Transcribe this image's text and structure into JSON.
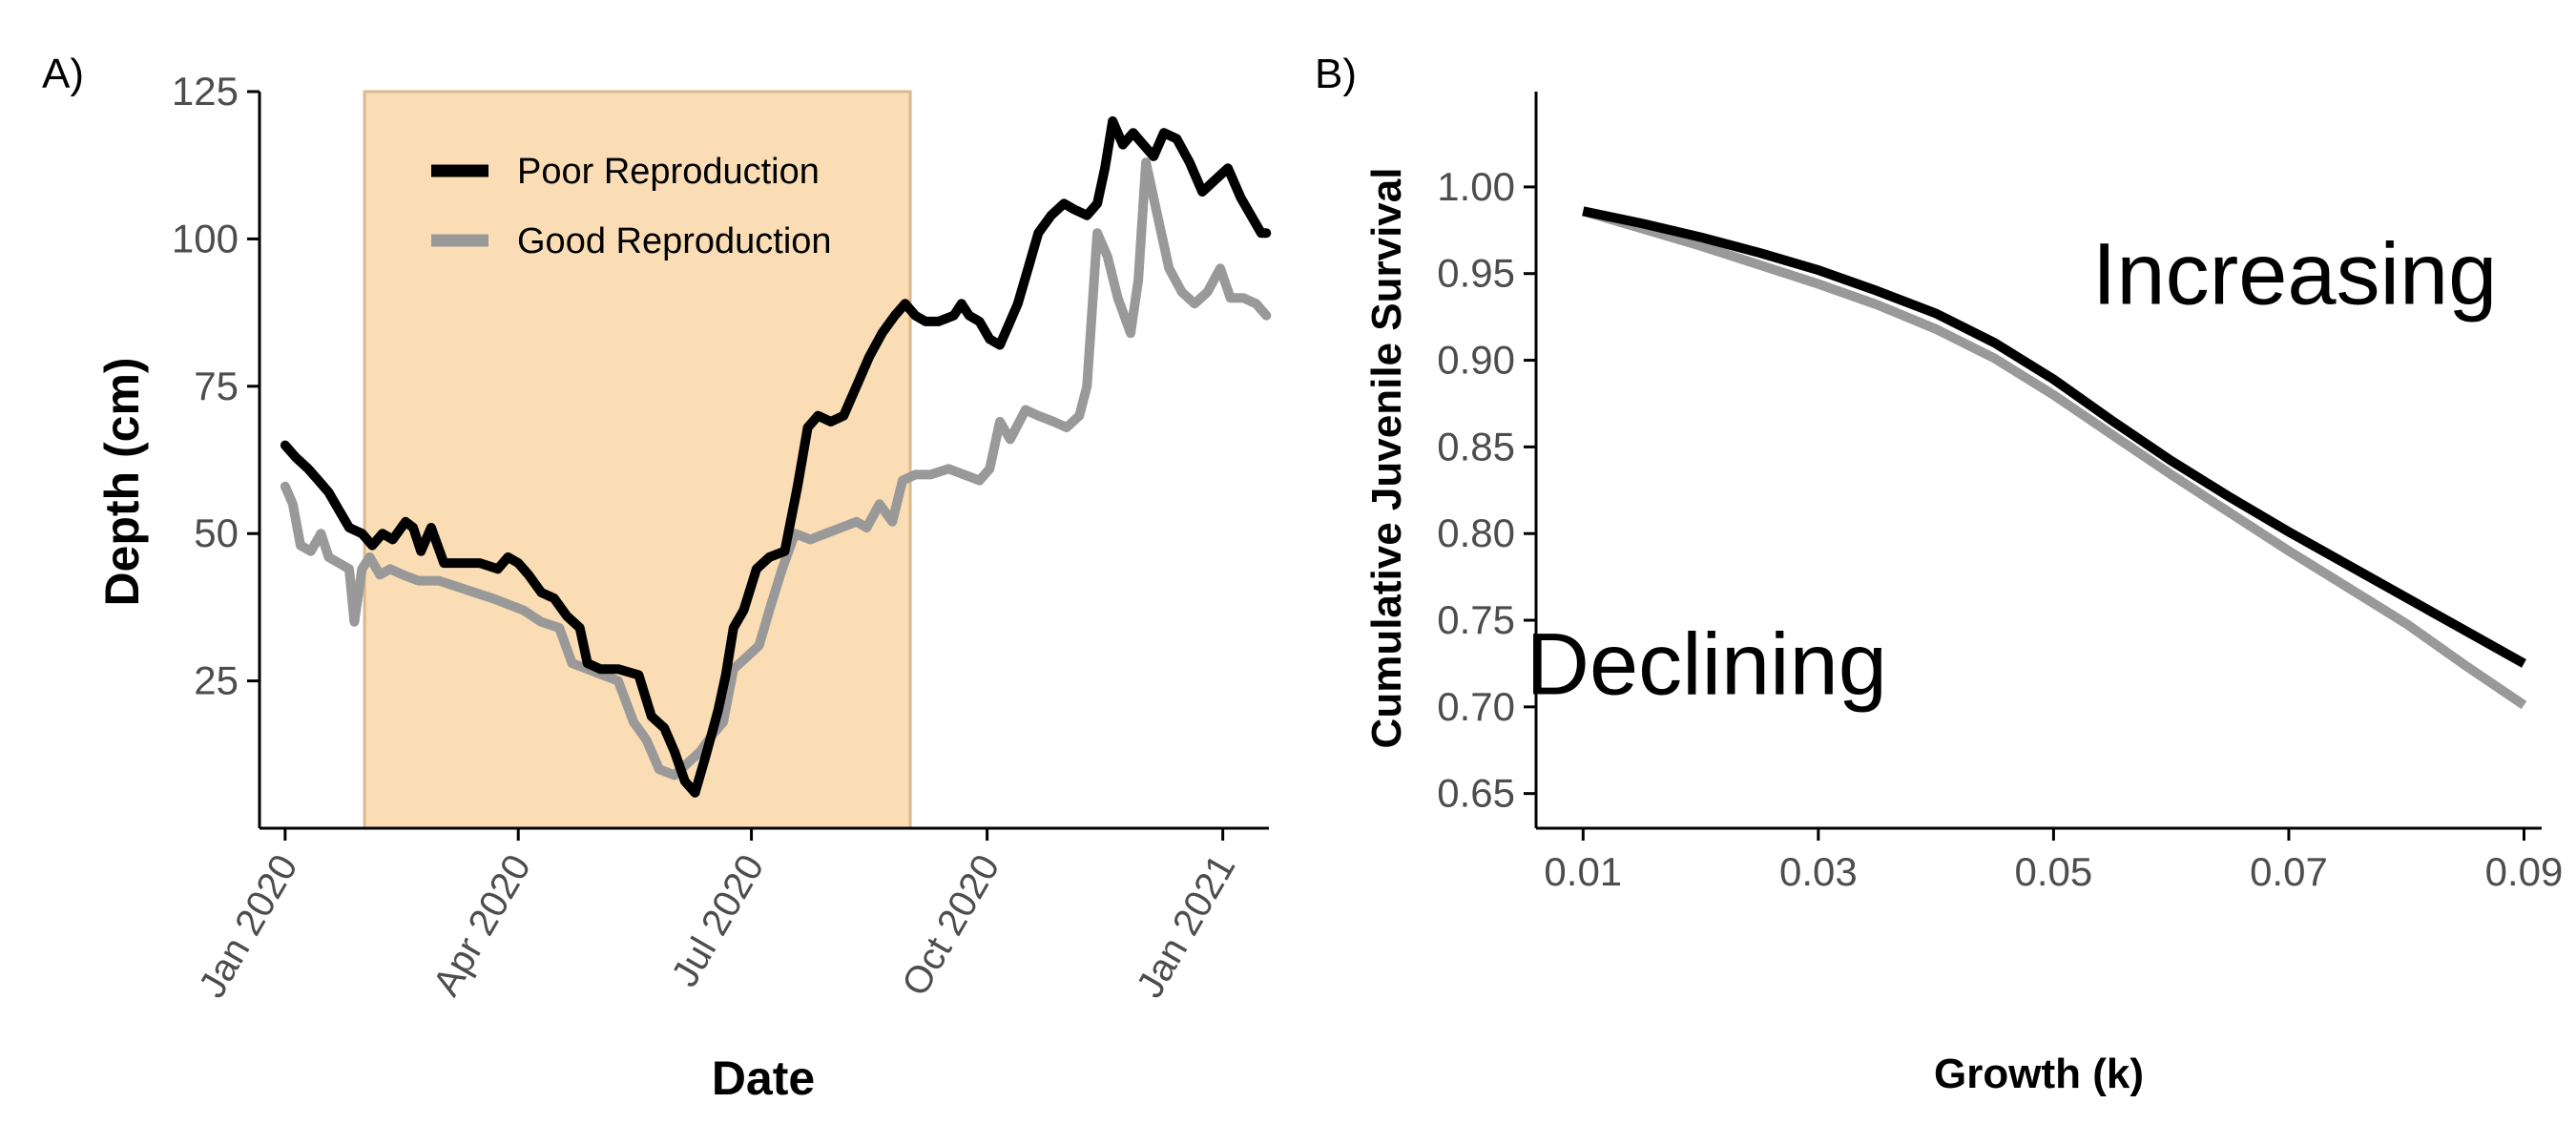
{
  "colors": {
    "poor": "#000000",
    "good": "#999999",
    "window_fill": "#FADDB4",
    "window_stroke": "#D9B98E",
    "axis": "#000000",
    "tick_text": "#4d4d4d"
  },
  "chart_data": [
    {
      "panel": "A)",
      "type": "line",
      "xlabel": "Date",
      "ylabel": "Depth (cm)",
      "x_type": "date",
      "xlim": [
        "2019-12-22",
        "2021-01-19"
      ],
      "ylim": [
        0,
        125
      ],
      "x_ticks": [
        "2020-01-01",
        "2020-04-01",
        "2020-07-01",
        "2020-10-01",
        "2021-01-01"
      ],
      "x_tick_labels": [
        "Jan 2020",
        "Apr 2020",
        "Jul 2020",
        "Oct 2020",
        "Jan 2021"
      ],
      "y_ticks": [
        25,
        50,
        75,
        100,
        125
      ],
      "y_tick_labels": [
        "25",
        "50",
        "75",
        "100",
        "125"
      ],
      "grid": false,
      "legend_position": "top-left",
      "shaded_window": {
        "start": "2020-02-01",
        "end": "2020-09-01"
      },
      "series": [
        {
          "name": "Poor Reproduction",
          "color": "poor",
          "points": [
            [
              "2020-01-01",
              65
            ],
            [
              "2020-01-05",
              63
            ],
            [
              "2020-01-10",
              61
            ],
            [
              "2020-01-14",
              59
            ],
            [
              "2020-01-18",
              57
            ],
            [
              "2020-01-22",
              54
            ],
            [
              "2020-01-26",
              51
            ],
            [
              "2020-01-31",
              50
            ],
            [
              "2020-02-04",
              48
            ],
            [
              "2020-02-08",
              50
            ],
            [
              "2020-02-12",
              49
            ],
            [
              "2020-02-17",
              52
            ],
            [
              "2020-02-20",
              51
            ],
            [
              "2020-02-23",
              47
            ],
            [
              "2020-02-27",
              51
            ],
            [
              "2020-03-03",
              45
            ],
            [
              "2020-03-10",
              45
            ],
            [
              "2020-03-17",
              45
            ],
            [
              "2020-03-24",
              44
            ],
            [
              "2020-03-28",
              46
            ],
            [
              "2020-04-01",
              45
            ],
            [
              "2020-04-05",
              43
            ],
            [
              "2020-04-10",
              40
            ],
            [
              "2020-04-15",
              39
            ],
            [
              "2020-04-20",
              36
            ],
            [
              "2020-04-25",
              34
            ],
            [
              "2020-04-28",
              28
            ],
            [
              "2020-05-03",
              27
            ],
            [
              "2020-05-10",
              27
            ],
            [
              "2020-05-18",
              26
            ],
            [
              "2020-05-23",
              19
            ],
            [
              "2020-05-28",
              17
            ],
            [
              "2020-06-01",
              13
            ],
            [
              "2020-06-05",
              8
            ],
            [
              "2020-06-09",
              6
            ],
            [
              "2020-06-13",
              12
            ],
            [
              "2020-06-18",
              20
            ],
            [
              "2020-06-21",
              26
            ],
            [
              "2020-06-24",
              34
            ],
            [
              "2020-06-28",
              37
            ],
            [
              "2020-07-03",
              44
            ],
            [
              "2020-07-08",
              46
            ],
            [
              "2020-07-14",
              47
            ],
            [
              "2020-07-19",
              58
            ],
            [
              "2020-07-23",
              68
            ],
            [
              "2020-07-27",
              70
            ],
            [
              "2020-08-01",
              69
            ],
            [
              "2020-08-06",
              70
            ],
            [
              "2020-08-11",
              75
            ],
            [
              "2020-08-16",
              80
            ],
            [
              "2020-08-21",
              84
            ],
            [
              "2020-08-26",
              87
            ],
            [
              "2020-08-30",
              89
            ],
            [
              "2020-09-03",
              87
            ],
            [
              "2020-09-07",
              86
            ],
            [
              "2020-09-12",
              86
            ],
            [
              "2020-09-18",
              87
            ],
            [
              "2020-09-21",
              89
            ],
            [
              "2020-09-24",
              87
            ],
            [
              "2020-09-28",
              86
            ],
            [
              "2020-10-02",
              83
            ],
            [
              "2020-10-06",
              82
            ],
            [
              "2020-10-10",
              86
            ],
            [
              "2020-10-13",
              89
            ],
            [
              "2020-10-17",
              95
            ],
            [
              "2020-10-21",
              101
            ],
            [
              "2020-10-26",
              104
            ],
            [
              "2020-10-31",
              106
            ],
            [
              "2020-11-04",
              105
            ],
            [
              "2020-11-09",
              104
            ],
            [
              "2020-11-13",
              106
            ],
            [
              "2020-11-16",
              112
            ],
            [
              "2020-11-19",
              120
            ],
            [
              "2020-11-23",
              116
            ],
            [
              "2020-11-27",
              118
            ],
            [
              "2020-12-01",
              116
            ],
            [
              "2020-12-05",
              114
            ],
            [
              "2020-12-09",
              118
            ],
            [
              "2020-12-14",
              117
            ],
            [
              "2020-12-19",
              113
            ],
            [
              "2020-12-24",
              108
            ],
            [
              "2020-12-29",
              110
            ],
            [
              "2021-01-03",
              112
            ],
            [
              "2021-01-08",
              107
            ],
            [
              "2021-01-12",
              104
            ],
            [
              "2021-01-16",
              101
            ],
            [
              "2021-01-18",
              101
            ]
          ]
        },
        {
          "name": "Good Reproduction",
          "color": "good",
          "points": [
            [
              "2020-01-01",
              58
            ],
            [
              "2020-01-04",
              55
            ],
            [
              "2020-01-07",
              48
            ],
            [
              "2020-01-11",
              47
            ],
            [
              "2020-01-15",
              50
            ],
            [
              "2020-01-18",
              46
            ],
            [
              "2020-01-22",
              45
            ],
            [
              "2020-01-26",
              44
            ],
            [
              "2020-01-28",
              35
            ],
            [
              "2020-01-31",
              44
            ],
            [
              "2020-02-03",
              46
            ],
            [
              "2020-02-07",
              43
            ],
            [
              "2020-02-11",
              44
            ],
            [
              "2020-02-16",
              43
            ],
            [
              "2020-02-22",
              42
            ],
            [
              "2020-03-01",
              42
            ],
            [
              "2020-03-08",
              41
            ],
            [
              "2020-03-15",
              40
            ],
            [
              "2020-03-22",
              39
            ],
            [
              "2020-03-28",
              38
            ],
            [
              "2020-04-03",
              37
            ],
            [
              "2020-04-10",
              35
            ],
            [
              "2020-04-17",
              34
            ],
            [
              "2020-04-22",
              28
            ],
            [
              "2020-04-28",
              27
            ],
            [
              "2020-05-04",
              26
            ],
            [
              "2020-05-10",
              25
            ],
            [
              "2020-05-16",
              18
            ],
            [
              "2020-05-21",
              15
            ],
            [
              "2020-05-26",
              10
            ],
            [
              "2020-06-01",
              9
            ],
            [
              "2020-06-06",
              11
            ],
            [
              "2020-06-11",
              13
            ],
            [
              "2020-06-16",
              16
            ],
            [
              "2020-06-20",
              18
            ],
            [
              "2020-06-24",
              27
            ],
            [
              "2020-06-29",
              29
            ],
            [
              "2020-07-04",
              31
            ],
            [
              "2020-07-08",
              37
            ],
            [
              "2020-07-13",
              44
            ],
            [
              "2020-07-18",
              50
            ],
            [
              "2020-07-24",
              49
            ],
            [
              "2020-07-30",
              50
            ],
            [
              "2020-08-05",
              51
            ],
            [
              "2020-08-11",
              52
            ],
            [
              "2020-08-15",
              51
            ],
            [
              "2020-08-20",
              55
            ],
            [
              "2020-08-25",
              52
            ],
            [
              "2020-08-29",
              59
            ],
            [
              "2020-09-03",
              60
            ],
            [
              "2020-09-09",
              60
            ],
            [
              "2020-09-16",
              61
            ],
            [
              "2020-09-22",
              60
            ],
            [
              "2020-09-28",
              59
            ],
            [
              "2020-10-02",
              61
            ],
            [
              "2020-10-06",
              69
            ],
            [
              "2020-10-10",
              66
            ],
            [
              "2020-10-16",
              71
            ],
            [
              "2020-10-21",
              70
            ],
            [
              "2020-10-27",
              69
            ],
            [
              "2020-11-01",
              68
            ],
            [
              "2020-11-06",
              70
            ],
            [
              "2020-11-09",
              75
            ],
            [
              "2020-11-13",
              101
            ],
            [
              "2020-11-17",
              97
            ],
            [
              "2020-11-21",
              90
            ],
            [
              "2020-11-26",
              84
            ],
            [
              "2020-11-29",
              93
            ],
            [
              "2020-12-02",
              113
            ],
            [
              "2020-12-06",
              105
            ],
            [
              "2020-12-11",
              95
            ],
            [
              "2020-12-16",
              91
            ],
            [
              "2020-12-21",
              89
            ],
            [
              "2020-12-26",
              91
            ],
            [
              "2020-12-31",
              95
            ],
            [
              "2021-01-04",
              90
            ],
            [
              "2021-01-09",
              90
            ],
            [
              "2021-01-14",
              89
            ],
            [
              "2021-01-18",
              87
            ]
          ]
        }
      ]
    },
    {
      "panel": "B)",
      "type": "line",
      "xlabel": "Growth (k)",
      "ylabel": "Cumulative Juvenile Survival",
      "xlim": [
        0.006,
        0.0915
      ],
      "ylim": [
        0.63,
        1.055
      ],
      "x_ticks": [
        0.01,
        0.03,
        0.05,
        0.07,
        0.09
      ],
      "x_tick_labels": [
        "0.01",
        "0.03",
        "0.05",
        "0.07",
        "0.09"
      ],
      "y_ticks": [
        0.65,
        0.7,
        0.75,
        0.8,
        0.85,
        0.9,
        0.95,
        1.0
      ],
      "y_tick_labels": [
        "0.65",
        "0.70",
        "0.75",
        "0.80",
        "0.85",
        "0.90",
        "0.95",
        "1.00"
      ],
      "grid": false,
      "annotations": [
        {
          "text": "Increasing",
          "x": 0.0705,
          "y": 0.95
        },
        {
          "text": "Declining",
          "x": 0.0205,
          "y": 0.725
        }
      ],
      "series": [
        {
          "name": "Poor Reproduction",
          "color": "poor",
          "x": [
            0.01,
            0.015,
            0.02,
            0.025,
            0.03,
            0.035,
            0.04,
            0.045,
            0.05,
            0.055,
            0.06,
            0.065,
            0.07,
            0.075,
            0.08,
            0.085,
            0.09
          ],
          "values": [
            0.986,
            0.979,
            0.971,
            0.962,
            0.952,
            0.94,
            0.927,
            0.91,
            0.889,
            0.865,
            0.842,
            0.821,
            0.801,
            0.782,
            0.763,
            0.744,
            0.725
          ]
        },
        {
          "name": "Good Reproduction",
          "color": "good",
          "x": [
            0.01,
            0.015,
            0.02,
            0.025,
            0.03,
            0.035,
            0.04,
            0.045,
            0.05,
            0.055,
            0.06,
            0.065,
            0.07,
            0.075,
            0.08,
            0.085,
            0.09
          ],
          "values": [
            0.986,
            0.976,
            0.966,
            0.955,
            0.944,
            0.932,
            0.918,
            0.901,
            0.88,
            0.857,
            0.834,
            0.812,
            0.79,
            0.769,
            0.748,
            0.724,
            0.701
          ]
        }
      ]
    }
  ]
}
